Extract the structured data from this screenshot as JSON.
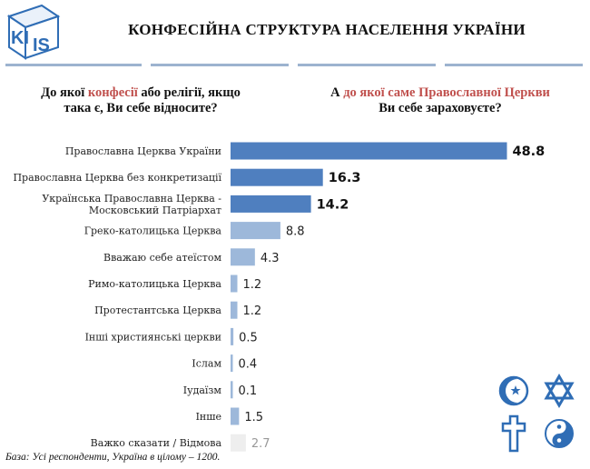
{
  "header": {
    "logo_text": "KIIS",
    "title": "КОНФЕСІЙНА СТРУКТУРА НАСЕЛЕННЯ УКРАЇНИ"
  },
  "questions": {
    "left": {
      "pre": "До якої ",
      "highlight": "конфесії",
      "post": " або релігії, якщо",
      "line2": "така є, Ви себе відносите?"
    },
    "right": {
      "pre": "А ",
      "highlight": "до якої саме Православної Церкви",
      "post": "",
      "line2": "Ви себе зараховуєте?"
    }
  },
  "chart_data": {
    "type": "bar",
    "orientation": "horizontal",
    "categories": [
      "Православна Церква України",
      "Православна Церква без конкретизації",
      "Українська Православна Церква - Московський Патріархат",
      "Греко-католицька Церква",
      "Вважаю себе атеїстом",
      "Римо-католицька Церква",
      "Протестантська Церква",
      "Інші християнські церкви",
      "Іслам",
      "Іудаїзм",
      "Інше",
      "Важко сказати / Відмова"
    ],
    "label_lines": [
      [
        "Православна Церква України"
      ],
      [
        "Православна Церква без конкретизації"
      ],
      [
        "Українська Православна Церква -",
        "Московський Патріархат"
      ],
      [
        "Греко-католицька Церква"
      ],
      [
        "Вважаю себе атеїстом"
      ],
      [
        "Римо-католицька Церква"
      ],
      [
        "Протестантська Церква"
      ],
      [
        "Інші християнські церкви"
      ],
      [
        "Іслам"
      ],
      [
        "Іудаїзм"
      ],
      [
        "Інше"
      ],
      [
        "Важко сказати / Відмова"
      ]
    ],
    "values": [
      48.8,
      16.3,
      14.2,
      8.8,
      4.3,
      1.2,
      1.2,
      0.5,
      0.4,
      0.1,
      1.5,
      2.7
    ],
    "value_labels": [
      "48.8",
      "16.3",
      "14.2",
      "8.8",
      "4.3",
      "1.2",
      "1.2",
      "0.5",
      "0.4",
      "0.1",
      "1.5",
      "2.7"
    ],
    "xlim": [
      0,
      50
    ],
    "grid": false,
    "colors": {
      "orthodox": "#4f7fbf",
      "other": "#9db8da",
      "dont_know": "#eeeeee",
      "value_bold": "#111111",
      "value_normal": "#222222",
      "value_dk": "#999999"
    },
    "color_groups": [
      "orthodox",
      "orthodox",
      "orthodox",
      "other",
      "other",
      "other",
      "other",
      "other",
      "other",
      "other",
      "other",
      "dont_know"
    ]
  },
  "icons": [
    "crescent-star-icon",
    "star-of-david-icon",
    "cross-icon",
    "yin-yang-icon"
  ],
  "footnote": "База: Усі респонденти, Україна в цілому – 1200."
}
